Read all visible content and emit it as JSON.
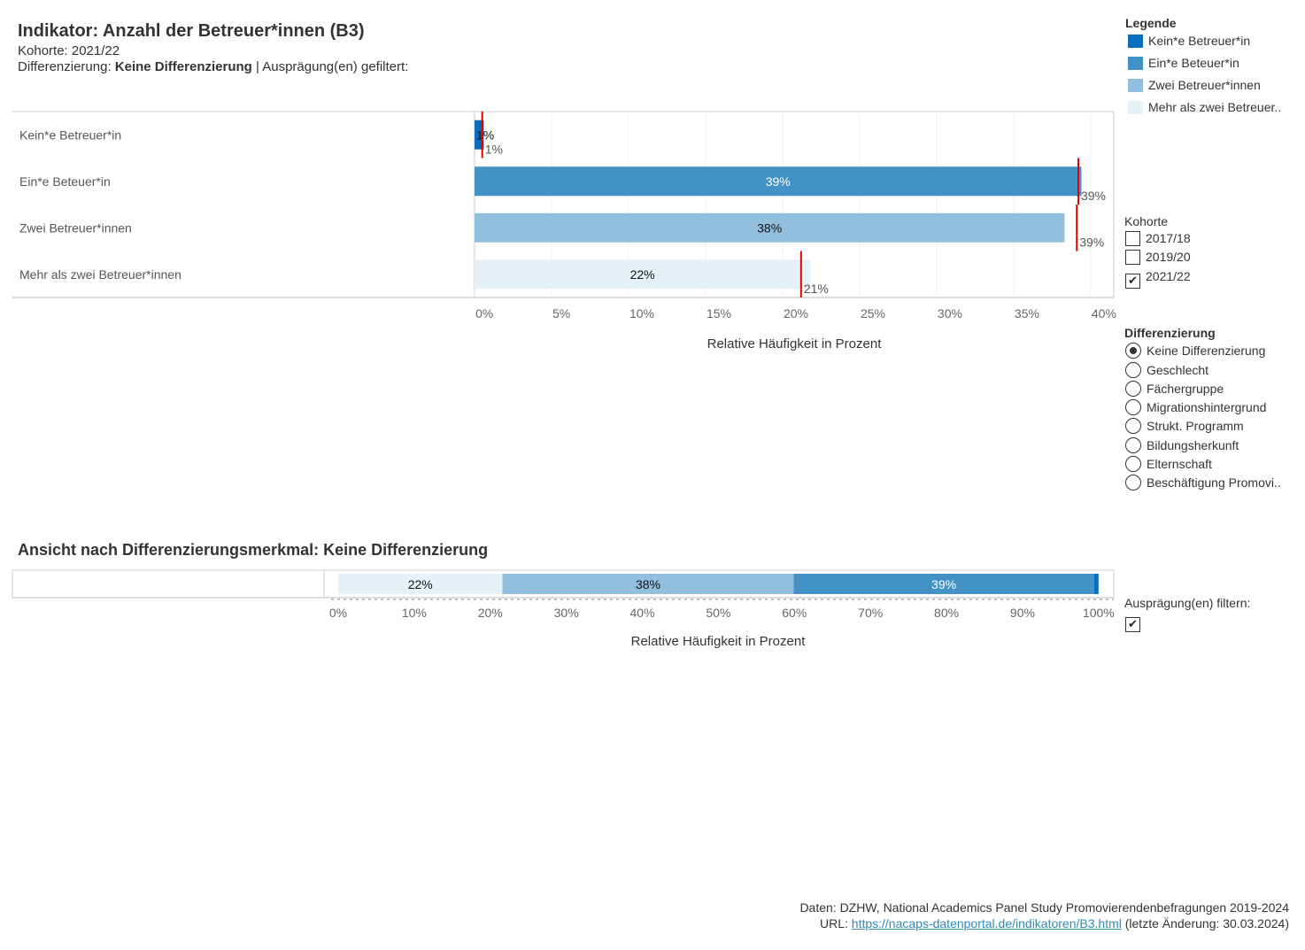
{
  "header": {
    "title": "Indikator: Anzahl der Betreuer*innen (B3)",
    "kohorte_label": "Kohorte: ",
    "kohorte_value": "2021/22",
    "diff_label": "Differenzierung: ",
    "diff_value": "Keine Differenzierung",
    "diff_suffix": " | Ausprägung(en) gefiltert:"
  },
  "legend": {
    "title": "Legende",
    "items": [
      {
        "label": "Kein*e Betreuer*in",
        "color": "#0a6ebd"
      },
      {
        "label": "Ein*e Beteuer*in",
        "color": "#4292c6"
      },
      {
        "label": "Zwei Betreuer*innen",
        "color": "#91bfdd"
      },
      {
        "label": "Mehr als zwei Betreuer..",
        "color": "#e6f0f7"
      }
    ]
  },
  "kohorte_filter": {
    "title": "Kohorte",
    "options": [
      {
        "label": "2017/18",
        "checked": false
      },
      {
        "label": "2019/20",
        "checked": false
      },
      {
        "label": "2021/22",
        "checked": true
      }
    ]
  },
  "differenzierung_filter": {
    "title": "Differenzierung",
    "options": [
      {
        "label": "Keine Differenzierung",
        "selected": true
      },
      {
        "label": "Geschlecht",
        "selected": false
      },
      {
        "label": "Fächergruppe",
        "selected": false
      },
      {
        "label": "Migrationshintergrund",
        "selected": false
      },
      {
        "label": "Strukt. Programm",
        "selected": false
      },
      {
        "label": "Bildungsherkunft",
        "selected": false
      },
      {
        "label": "Elternschaft",
        "selected": false
      },
      {
        "label": "Beschäftigung Promovi..",
        "selected": false
      }
    ]
  },
  "auspraegung_filter": {
    "title": "Ausprägung(en) filtern:",
    "checked": true
  },
  "section2": {
    "title": "Ansicht nach Differenzierungsmerkmal: Keine Differenzierung"
  },
  "footer": {
    "source": "Daten: DZHW, National Academics Panel Study Promovierendenbefragungen 2019-2024",
    "url_label": "URL: ",
    "url": "https://nacaps-datenportal.de/indikatoren/B3.html",
    "url_suffix": " (letzte Änderung: 30.03.2024)"
  },
  "chart_data": [
    {
      "type": "bar",
      "orientation": "horizontal",
      "categories": [
        "Kein*e Betreuer*in",
        "Ein*e Beteuer*in",
        "Zwei Betreuer*innen",
        "Mehr als zwei Betreuer*innen"
      ],
      "values": [
        0.6,
        39.4,
        38.3,
        21.8
      ],
      "value_labels": [
        "1%",
        "39%",
        "38%",
        "22%"
      ],
      "reference_values": [
        0.5,
        39.2,
        39.1,
        21.2
      ],
      "reference_labels": [
        "1%",
        "39%",
        "39%",
        "21%"
      ],
      "colors": [
        "#0a6ebd",
        "#4292c6",
        "#91bfdd",
        "#e6f0f7"
      ],
      "reference_color": "#e00000",
      "xlabel": "Relative Häufigkeit in Prozent",
      "xlim": [
        0,
        41.5
      ],
      "xticks": [
        0,
        5,
        10,
        15,
        20,
        25,
        30,
        35,
        40
      ],
      "xtick_labels": [
        "0%",
        "5%",
        "10%",
        "15%",
        "20%",
        "25%",
        "30%",
        "35%",
        "40%"
      ],
      "grid": true
    },
    {
      "type": "bar",
      "orientation": "horizontal",
      "stacked": true,
      "segments": [
        {
          "label": "22%",
          "value": 21.6,
          "color": "#e6f0f7"
        },
        {
          "label": "38%",
          "value": 38.3,
          "color": "#91bfdd"
        },
        {
          "label": "39%",
          "value": 39.5,
          "color": "#4292c6"
        },
        {
          "label": "",
          "value": 0.6,
          "color": "#0a6ebd"
        }
      ],
      "xlabel": "Relative Häufigkeit in Prozent",
      "xlim": [
        0,
        102
      ],
      "xticks": [
        0,
        10,
        20,
        30,
        40,
        50,
        60,
        70,
        80,
        90,
        100
      ],
      "xtick_labels": [
        "0%",
        "10%",
        "20%",
        "30%",
        "40%",
        "50%",
        "60%",
        "70%",
        "80%",
        "90%",
        "100%"
      ]
    }
  ]
}
